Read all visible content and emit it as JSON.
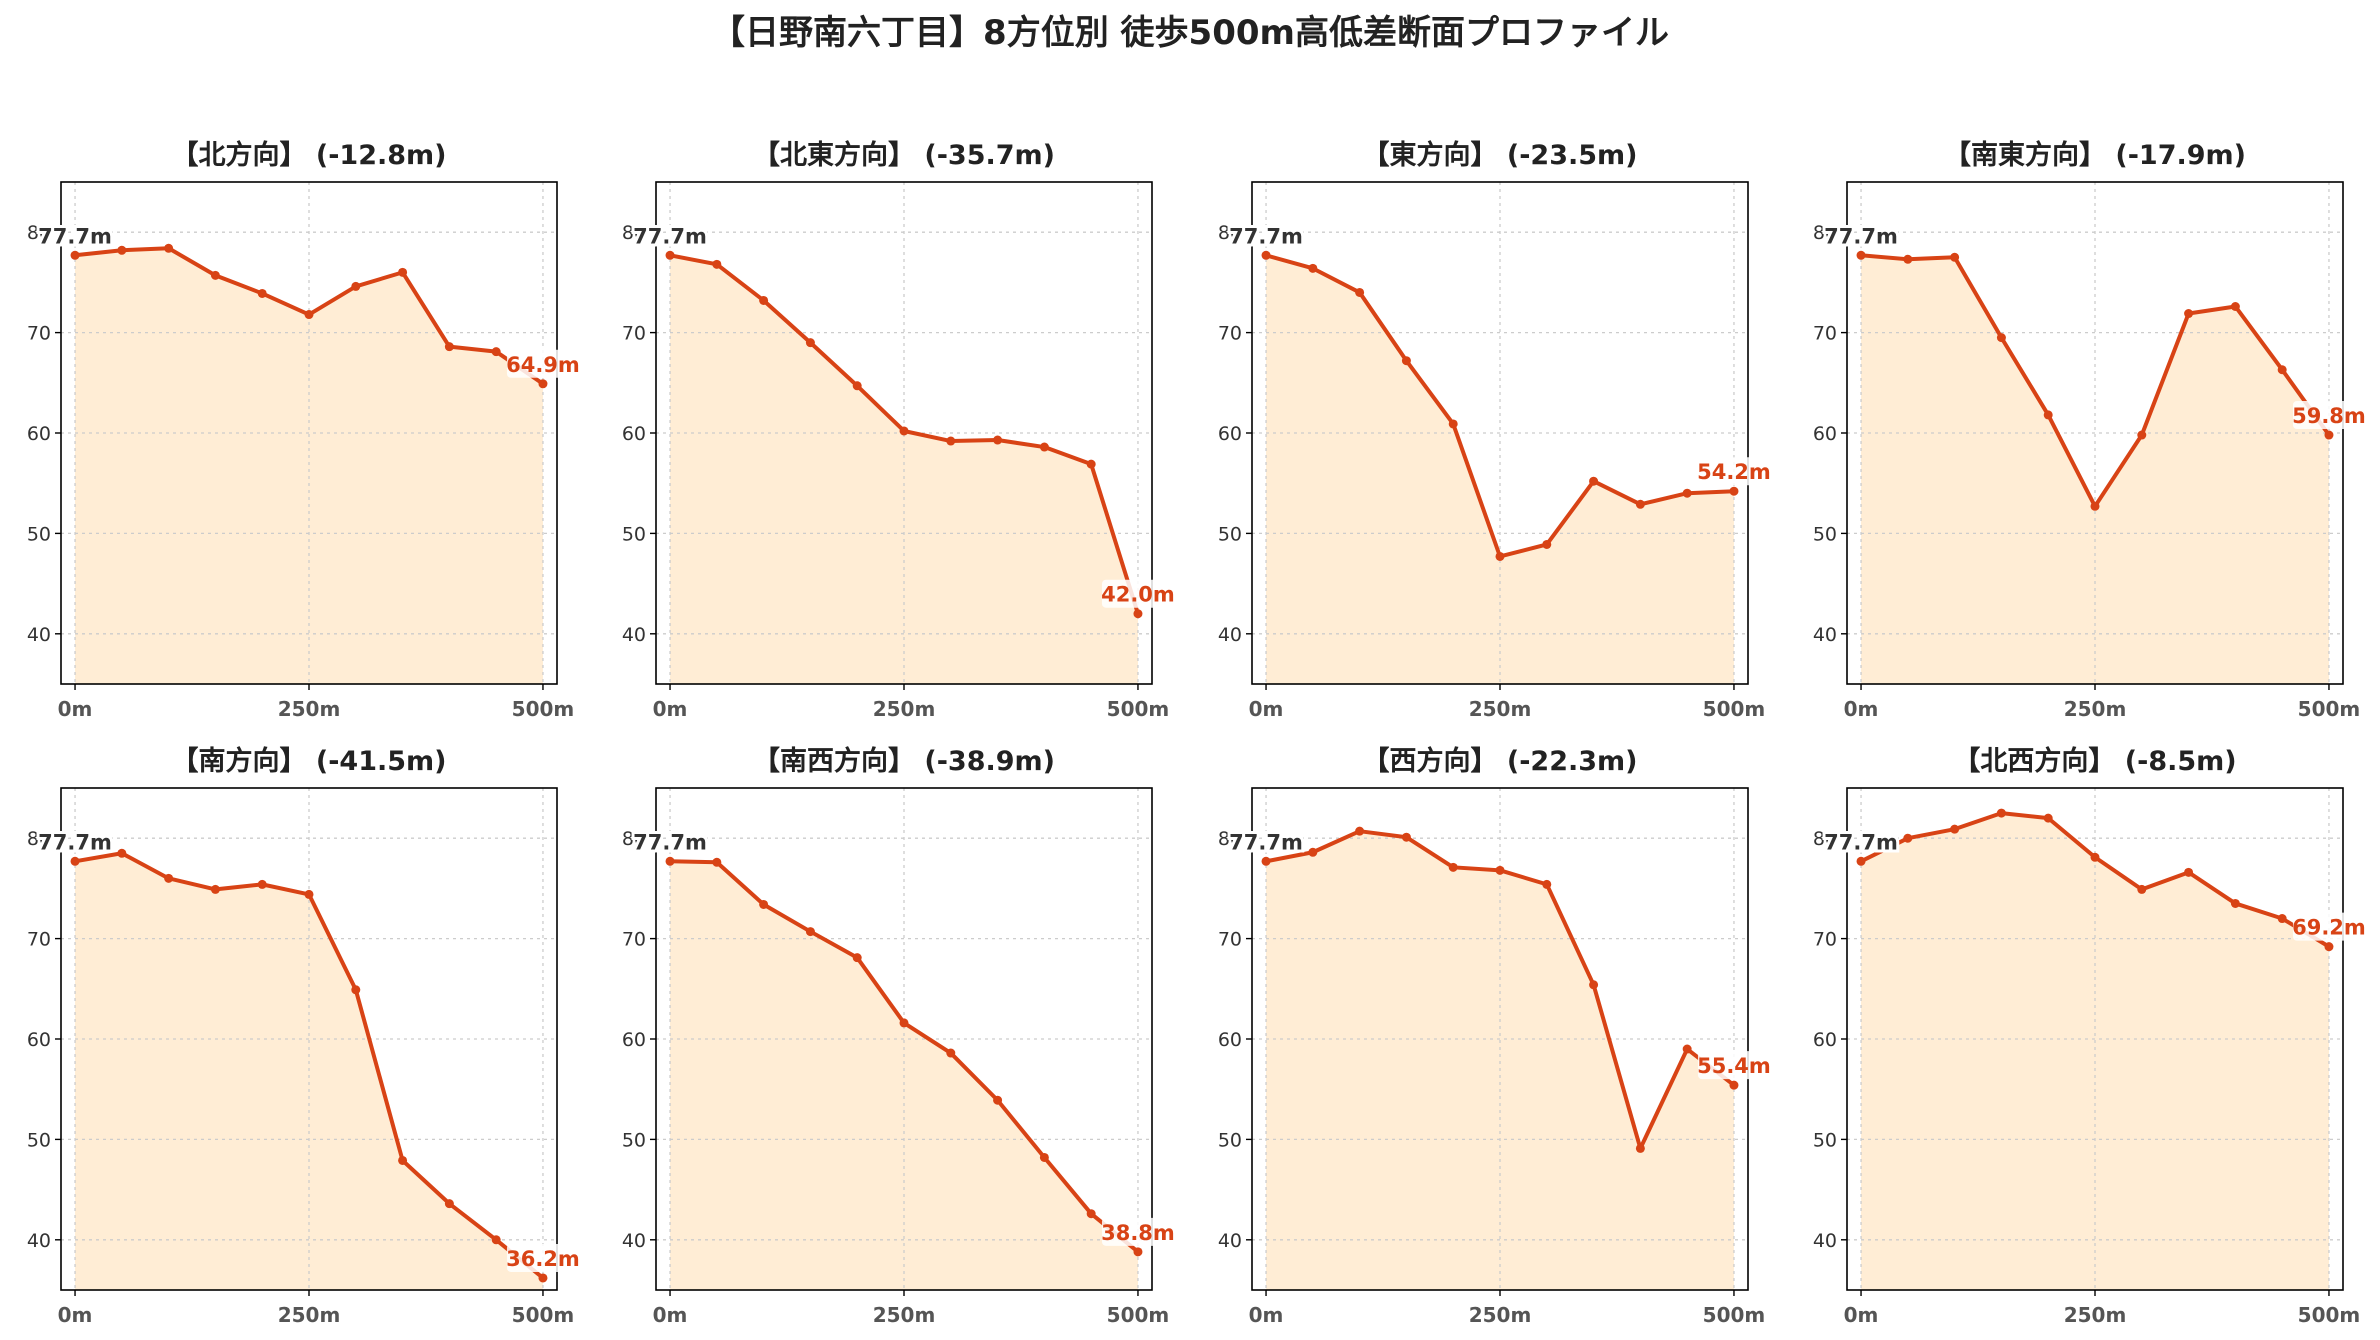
{
  "title": "【日野南六丁目】8方位別 徒歩500m高低差断面プロファイル",
  "colors": {
    "line": "#d84315",
    "fill": "#ffedd5",
    "grid": "#cccccc",
    "axis": "#000000"
  },
  "chart_data": [
    {
      "type": "area",
      "title": "【北方向】 (-12.8m)",
      "x": [
        0,
        50,
        100,
        150,
        200,
        250,
        300,
        350,
        400,
        450,
        500
      ],
      "xticks": [
        "0m",
        "250m",
        "500m"
      ],
      "xtick_values": [
        0,
        250,
        500
      ],
      "values": [
        77.7,
        78.2,
        78.4,
        75.7,
        73.9,
        71.8,
        74.6,
        76.0,
        68.6,
        68.1,
        64.9
      ],
      "start_label": "77.7m",
      "end_label": "64.9m",
      "yticks": [
        40,
        50,
        60,
        70,
        80
      ],
      "ylim": [
        35,
        85
      ],
      "xlim": [
        -15,
        515
      ],
      "grid": true
    },
    {
      "type": "area",
      "title": "【北東方向】 (-35.7m)",
      "x": [
        0,
        50,
        100,
        150,
        200,
        250,
        300,
        350,
        400,
        450,
        500
      ],
      "xticks": [
        "0m",
        "250m",
        "500m"
      ],
      "xtick_values": [
        0,
        250,
        500
      ],
      "values": [
        77.7,
        76.8,
        73.2,
        69.0,
        64.7,
        60.2,
        59.2,
        59.3,
        58.6,
        56.9,
        42.0
      ],
      "start_label": "77.7m",
      "end_label": "42.0m",
      "yticks": [
        40,
        50,
        60,
        70,
        80
      ],
      "ylim": [
        35,
        85
      ],
      "xlim": [
        -15,
        515
      ],
      "grid": true
    },
    {
      "type": "area",
      "title": "【東方向】 (-23.5m)",
      "x": [
        0,
        50,
        100,
        150,
        200,
        250,
        300,
        350,
        400,
        450,
        500
      ],
      "xticks": [
        "0m",
        "250m",
        "500m"
      ],
      "xtick_values": [
        0,
        250,
        500
      ],
      "values": [
        77.7,
        76.4,
        74.0,
        67.2,
        60.9,
        47.7,
        48.9,
        55.2,
        52.9,
        54.0,
        54.2
      ],
      "start_label": "77.7m",
      "end_label": "54.2m",
      "yticks": [
        40,
        50,
        60,
        70,
        80
      ],
      "ylim": [
        35,
        85
      ],
      "xlim": [
        -15,
        515
      ],
      "grid": true
    },
    {
      "type": "area",
      "title": "【南東方向】 (-17.9m)",
      "x": [
        0,
        50,
        100,
        150,
        200,
        250,
        300,
        350,
        400,
        450,
        500
      ],
      "xticks": [
        "0m",
        "250m",
        "500m"
      ],
      "xtick_values": [
        0,
        250,
        500
      ],
      "values": [
        77.7,
        77.3,
        77.5,
        69.5,
        61.8,
        52.7,
        59.8,
        71.9,
        72.6,
        66.3,
        59.8
      ],
      "start_label": "77.7m",
      "end_label": "59.8m",
      "yticks": [
        40,
        50,
        60,
        70,
        80
      ],
      "ylim": [
        35,
        85
      ],
      "xlim": [
        -15,
        515
      ],
      "grid": true
    },
    {
      "type": "area",
      "title": "【南方向】 (-41.5m)",
      "x": [
        0,
        50,
        100,
        150,
        200,
        250,
        300,
        350,
        400,
        450,
        500
      ],
      "xticks": [
        "0m",
        "250m",
        "500m"
      ],
      "xtick_values": [
        0,
        250,
        500
      ],
      "values": [
        77.7,
        78.5,
        76.0,
        74.9,
        75.4,
        74.4,
        64.9,
        47.9,
        43.6,
        40.0,
        36.2
      ],
      "start_label": "77.7m",
      "end_label": "36.2m",
      "yticks": [
        40,
        50,
        60,
        70,
        80
      ],
      "ylim": [
        35,
        85
      ],
      "xlim": [
        -15,
        515
      ],
      "grid": true
    },
    {
      "type": "area",
      "title": "【南西方向】 (-38.9m)",
      "x": [
        0,
        50,
        100,
        150,
        200,
        250,
        300,
        350,
        400,
        450,
        500
      ],
      "xticks": [
        "0m",
        "250m",
        "500m"
      ],
      "xtick_values": [
        0,
        250,
        500
      ],
      "values": [
        77.7,
        77.6,
        73.4,
        70.7,
        68.1,
        61.6,
        58.6,
        53.9,
        48.2,
        42.6,
        38.8
      ],
      "start_label": "77.7m",
      "end_label": "38.8m",
      "yticks": [
        40,
        50,
        60,
        70,
        80
      ],
      "ylim": [
        35,
        85
      ],
      "xlim": [
        -15,
        515
      ],
      "grid": true
    },
    {
      "type": "area",
      "title": "【西方向】 (-22.3m)",
      "x": [
        0,
        50,
        100,
        150,
        200,
        250,
        300,
        350,
        400,
        450,
        500
      ],
      "xticks": [
        "0m",
        "250m",
        "500m"
      ],
      "xtick_values": [
        0,
        250,
        500
      ],
      "values": [
        77.7,
        78.6,
        80.7,
        80.1,
        77.1,
        76.8,
        75.4,
        65.4,
        49.1,
        59.0,
        55.4
      ],
      "start_label": "77.7m",
      "end_label": "55.4m",
      "yticks": [
        40,
        50,
        60,
        70,
        80
      ],
      "ylim": [
        35,
        85
      ],
      "xlim": [
        -15,
        515
      ],
      "grid": true
    },
    {
      "type": "area",
      "title": "【北西方向】 (-8.5m)",
      "x": [
        0,
        50,
        100,
        150,
        200,
        250,
        300,
        350,
        400,
        450,
        500
      ],
      "xticks": [
        "0m",
        "250m",
        "500m"
      ],
      "xtick_values": [
        0,
        250,
        500
      ],
      "values": [
        77.7,
        80.0,
        80.9,
        82.5,
        82.0,
        78.1,
        74.9,
        76.6,
        73.5,
        72.0,
        69.2
      ],
      "start_label": "77.7m",
      "end_label": "69.2m",
      "yticks": [
        40,
        50,
        60,
        70,
        80
      ],
      "ylim": [
        35,
        85
      ],
      "xlim": [
        -15,
        515
      ],
      "grid": true
    }
  ]
}
